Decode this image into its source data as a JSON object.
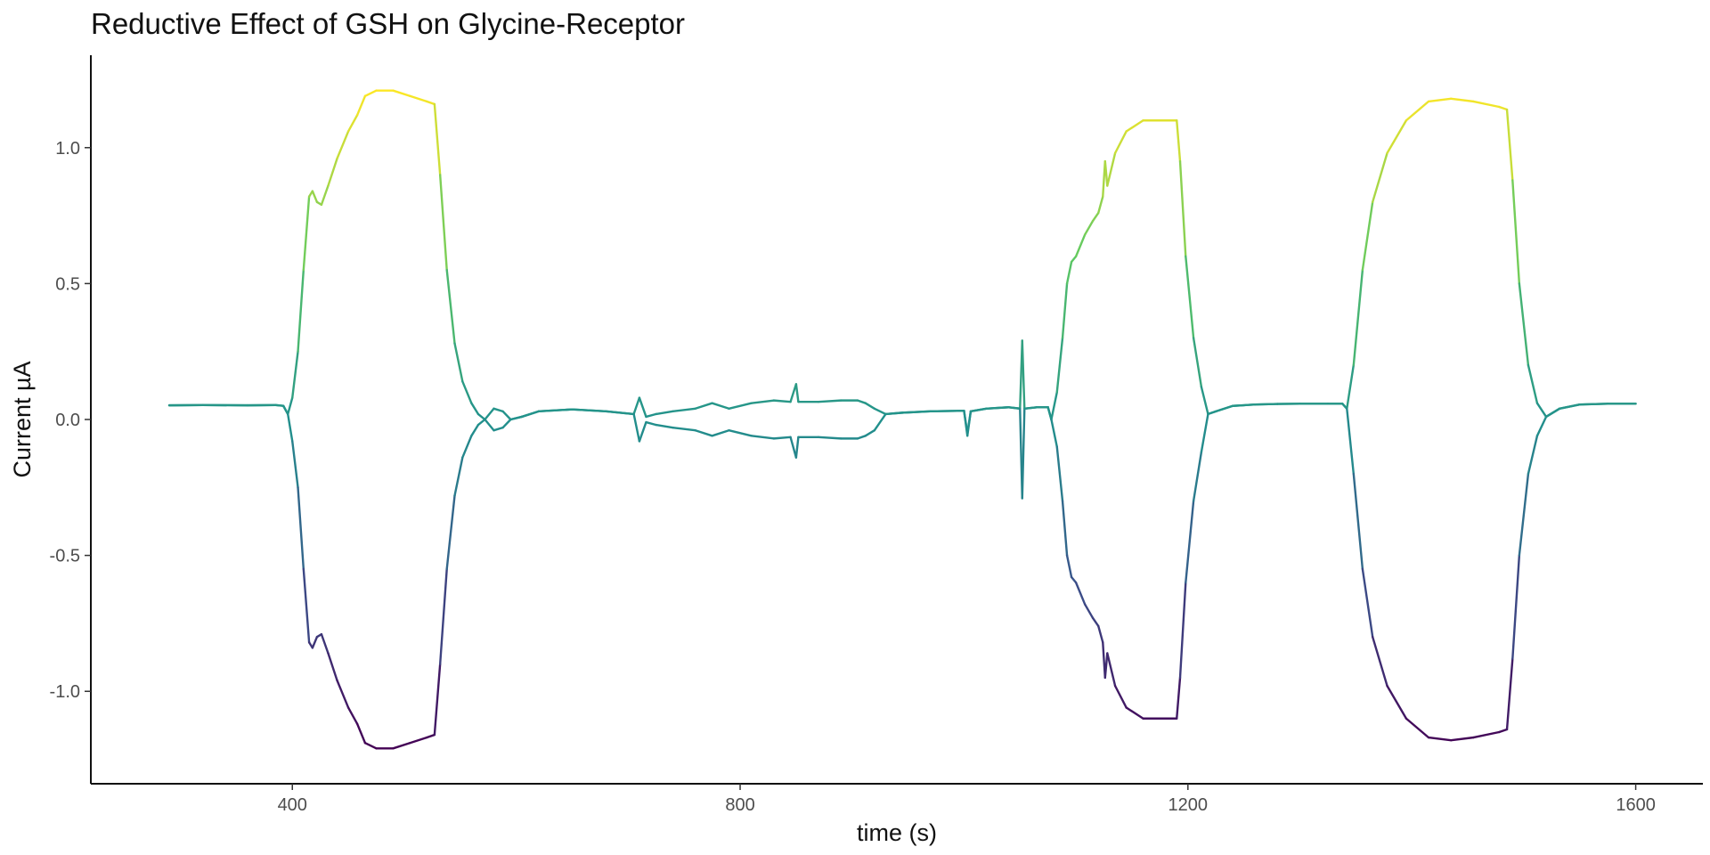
{
  "chart_data": {
    "type": "line",
    "title": "Reductive Effect of GSH on Glycine-Receptor",
    "xlabel": "time (s)",
    "ylabel": "Current µA",
    "xlim": [
      220,
      1660
    ],
    "ylim": [
      -1.34,
      1.34
    ],
    "x_ticks": [
      400,
      800,
      1200,
      1600
    ],
    "x_tick_labels": [
      "400",
      "800",
      "1200",
      "1600"
    ],
    "y_ticks": [
      -1.0,
      -0.5,
      0.0,
      0.5,
      1.0
    ],
    "y_tick_labels": [
      "-1.0",
      "-0.5",
      "0.0",
      "0.5",
      "1.0"
    ],
    "grid": false,
    "legend": "none",
    "color_scale": "viridis (by current value)",
    "color_stops": [
      "#440154",
      "#3b528b",
      "#21918c",
      "#5ec962",
      "#fde725"
    ],
    "series": [
      {
        "values": [
          [
            290,
            0.052
          ],
          [
            320,
            0.053
          ],
          [
            360,
            0.052
          ],
          [
            385,
            0.053
          ],
          [
            392,
            0.05
          ],
          [
            396,
            0.02
          ],
          [
            400,
            0.08
          ],
          [
            405,
            0.25
          ],
          [
            410,
            0.55
          ],
          [
            415,
            0.82
          ],
          [
            418,
            0.84
          ],
          [
            422,
            0.8
          ],
          [
            426,
            0.79
          ],
          [
            432,
            0.86
          ],
          [
            440,
            0.96
          ],
          [
            450,
            1.06
          ],
          [
            458,
            1.12
          ],
          [
            465,
            1.19
          ],
          [
            475,
            1.21
          ],
          [
            490,
            1.21
          ],
          [
            505,
            1.19
          ],
          [
            520,
            1.17
          ],
          [
            527,
            1.16
          ],
          [
            532,
            0.9
          ],
          [
            538,
            0.55
          ],
          [
            545,
            0.28
          ],
          [
            552,
            0.14
          ],
          [
            560,
            0.06
          ],
          [
            566,
            0.02
          ],
          [
            572,
            0.0
          ],
          [
            580,
            0.04
          ],
          [
            588,
            0.03
          ],
          [
            595,
            0.0
          ],
          [
            605,
            0.01
          ],
          [
            620,
            0.03
          ],
          [
            650,
            0.037
          ],
          [
            680,
            0.03
          ],
          [
            705,
            0.02
          ],
          [
            710,
            0.08
          ],
          [
            716,
            0.01
          ],
          [
            725,
            0.02
          ],
          [
            740,
            0.03
          ],
          [
            760,
            0.04
          ],
          [
            775,
            0.06
          ],
          [
            790,
            0.04
          ],
          [
            810,
            0.06
          ],
          [
            830,
            0.07
          ],
          [
            845,
            0.065
          ],
          [
            850,
            0.13
          ],
          [
            852,
            0.065
          ],
          [
            870,
            0.065
          ],
          [
            890,
            0.07
          ],
          [
            905,
            0.07
          ],
          [
            912,
            0.06
          ],
          [
            920,
            0.04
          ],
          [
            930,
            0.02
          ],
          [
            945,
            0.025
          ],
          [
            970,
            0.03
          ],
          [
            1000,
            0.032
          ],
          [
            1003,
            -0.05
          ],
          [
            1006,
            0.03
          ],
          [
            1020,
            0.04
          ],
          [
            1040,
            0.045
          ],
          [
            1050,
            0.04
          ],
          [
            1052,
            0.29
          ],
          [
            1054,
            0.04
          ],
          [
            1065,
            0.045
          ],
          [
            1075,
            0.045
          ],
          [
            1078,
            0.0
          ],
          [
            1083,
            0.1
          ],
          [
            1088,
            0.3
          ],
          [
            1092,
            0.5
          ],
          [
            1096,
            0.58
          ],
          [
            1100,
            0.6
          ],
          [
            1108,
            0.68
          ],
          [
            1115,
            0.73
          ],
          [
            1120,
            0.76
          ],
          [
            1124,
            0.82
          ],
          [
            1126,
            0.95
          ],
          [
            1128,
            0.86
          ],
          [
            1135,
            0.98
          ],
          [
            1145,
            1.06
          ],
          [
            1160,
            1.1
          ],
          [
            1175,
            1.1
          ],
          [
            1190,
            1.1
          ],
          [
            1193,
            0.95
          ],
          [
            1198,
            0.6
          ],
          [
            1205,
            0.3
          ],
          [
            1212,
            0.12
          ],
          [
            1218,
            0.02
          ],
          [
            1225,
            0.03
          ],
          [
            1240,
            0.05
          ],
          [
            1260,
            0.055
          ],
          [
            1280,
            0.057
          ],
          [
            1300,
            0.058
          ],
          [
            1325,
            0.058
          ],
          [
            1338,
            0.058
          ],
          [
            1342,
            0.04
          ],
          [
            1348,
            0.2
          ],
          [
            1356,
            0.55
          ],
          [
            1365,
            0.8
          ],
          [
            1378,
            0.98
          ],
          [
            1395,
            1.1
          ],
          [
            1415,
            1.17
          ],
          [
            1435,
            1.18
          ],
          [
            1455,
            1.17
          ],
          [
            1478,
            1.15
          ],
          [
            1485,
            1.14
          ],
          [
            1490,
            0.88
          ],
          [
            1496,
            0.5
          ],
          [
            1504,
            0.2
          ],
          [
            1512,
            0.06
          ],
          [
            1520,
            0.01
          ],
          [
            1532,
            0.04
          ],
          [
            1550,
            0.055
          ],
          [
            1575,
            0.058
          ],
          [
            1600,
            0.058
          ]
        ]
      },
      {
        "values": [
          [
            290,
            0.052
          ],
          [
            320,
            0.053
          ],
          [
            360,
            0.052
          ],
          [
            385,
            0.053
          ],
          [
            392,
            0.05
          ],
          [
            396,
            0.02
          ],
          [
            400,
            -0.08
          ],
          [
            405,
            -0.25
          ],
          [
            410,
            -0.55
          ],
          [
            415,
            -0.82
          ],
          [
            418,
            -0.84
          ],
          [
            422,
            -0.8
          ],
          [
            426,
            -0.79
          ],
          [
            432,
            -0.86
          ],
          [
            440,
            -0.96
          ],
          [
            450,
            -1.06
          ],
          [
            458,
            -1.12
          ],
          [
            465,
            -1.19
          ],
          [
            475,
            -1.21
          ],
          [
            490,
            -1.21
          ],
          [
            505,
            -1.19
          ],
          [
            520,
            -1.17
          ],
          [
            527,
            -1.16
          ],
          [
            532,
            -0.9
          ],
          [
            538,
            -0.55
          ],
          [
            545,
            -0.28
          ],
          [
            552,
            -0.14
          ],
          [
            560,
            -0.06
          ],
          [
            566,
            -0.02
          ],
          [
            572,
            0.0
          ],
          [
            580,
            -0.04
          ],
          [
            588,
            -0.03
          ],
          [
            595,
            0.0
          ],
          [
            605,
            0.01
          ],
          [
            620,
            0.03
          ],
          [
            650,
            0.037
          ],
          [
            680,
            0.03
          ],
          [
            705,
            0.02
          ],
          [
            710,
            -0.08
          ],
          [
            716,
            -0.01
          ],
          [
            725,
            -0.02
          ],
          [
            740,
            -0.03
          ],
          [
            760,
            -0.04
          ],
          [
            775,
            -0.06
          ],
          [
            790,
            -0.04
          ],
          [
            810,
            -0.06
          ],
          [
            830,
            -0.07
          ],
          [
            845,
            -0.065
          ],
          [
            850,
            -0.14
          ],
          [
            852,
            -0.065
          ],
          [
            870,
            -0.065
          ],
          [
            890,
            -0.07
          ],
          [
            905,
            -0.07
          ],
          [
            912,
            -0.06
          ],
          [
            920,
            -0.04
          ],
          [
            930,
            0.02
          ],
          [
            945,
            0.025
          ],
          [
            970,
            0.03
          ],
          [
            1000,
            0.032
          ],
          [
            1003,
            -0.06
          ],
          [
            1006,
            0.03
          ],
          [
            1020,
            0.04
          ],
          [
            1040,
            0.045
          ],
          [
            1050,
            0.04
          ],
          [
            1052,
            -0.29
          ],
          [
            1054,
            0.04
          ],
          [
            1065,
            0.045
          ],
          [
            1075,
            0.045
          ],
          [
            1078,
            0.0
          ],
          [
            1083,
            -0.1
          ],
          [
            1088,
            -0.3
          ],
          [
            1092,
            -0.5
          ],
          [
            1096,
            -0.58
          ],
          [
            1100,
            -0.6
          ],
          [
            1108,
            -0.68
          ],
          [
            1115,
            -0.73
          ],
          [
            1120,
            -0.76
          ],
          [
            1124,
            -0.82
          ],
          [
            1126,
            -0.95
          ],
          [
            1128,
            -0.86
          ],
          [
            1135,
            -0.98
          ],
          [
            1145,
            -1.06
          ],
          [
            1160,
            -1.1
          ],
          [
            1175,
            -1.1
          ],
          [
            1190,
            -1.1
          ],
          [
            1193,
            -0.95
          ],
          [
            1198,
            -0.6
          ],
          [
            1205,
            -0.3
          ],
          [
            1212,
            -0.12
          ],
          [
            1218,
            0.02
          ],
          [
            1225,
            0.03
          ],
          [
            1240,
            0.05
          ],
          [
            1260,
            0.055
          ],
          [
            1280,
            0.057
          ],
          [
            1300,
            0.058
          ],
          [
            1325,
            0.058
          ],
          [
            1338,
            0.058
          ],
          [
            1342,
            0.04
          ],
          [
            1348,
            -0.2
          ],
          [
            1356,
            -0.55
          ],
          [
            1365,
            -0.8
          ],
          [
            1378,
            -0.98
          ],
          [
            1395,
            -1.1
          ],
          [
            1415,
            -1.17
          ],
          [
            1435,
            -1.18
          ],
          [
            1455,
            -1.17
          ],
          [
            1478,
            -1.15
          ],
          [
            1485,
            -1.14
          ],
          [
            1490,
            -0.88
          ],
          [
            1496,
            -0.5
          ],
          [
            1504,
            -0.2
          ],
          [
            1512,
            -0.06
          ],
          [
            1520,
            0.01
          ],
          [
            1532,
            0.04
          ],
          [
            1550,
            0.055
          ],
          [
            1575,
            0.058
          ],
          [
            1600,
            0.058
          ]
        ]
      }
    ]
  }
}
